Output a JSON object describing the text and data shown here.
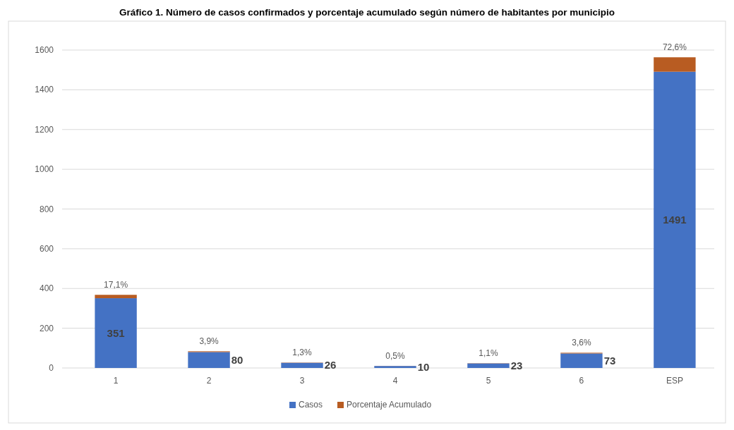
{
  "chart_data": {
    "type": "bar",
    "title": "Gráfico 1. Número de casos confirmados y porcentaje acumulado según número de habitantes por municipio",
    "categories": [
      "1",
      "2",
      "3",
      "4",
      "5",
      "6",
      "ESP"
    ],
    "stacked": true,
    "series": [
      {
        "name": "Casos",
        "color": "#4472c4",
        "values": [
          351,
          80,
          26,
          10,
          23,
          73,
          1491
        ],
        "value_labels": [
          "351",
          "80",
          "26",
          "10",
          "23",
          "73",
          "1491"
        ]
      },
      {
        "name": "Porcentaje Acumulado",
        "color": "#b85c22",
        "values": [
          17.1,
          3.9,
          1.3,
          0.5,
          1.1,
          3.6,
          72.6
        ],
        "value_labels": [
          "17,1%",
          "3,9%",
          "1,3%",
          "0,5%",
          "1,1%",
          "3,6%",
          "72,6%"
        ]
      }
    ],
    "ylim": [
      0,
      1600
    ],
    "yticks": [
      0,
      200,
      400,
      600,
      800,
      1000,
      1200,
      1400,
      1600
    ],
    "grid": "y",
    "legend": "bottom"
  }
}
